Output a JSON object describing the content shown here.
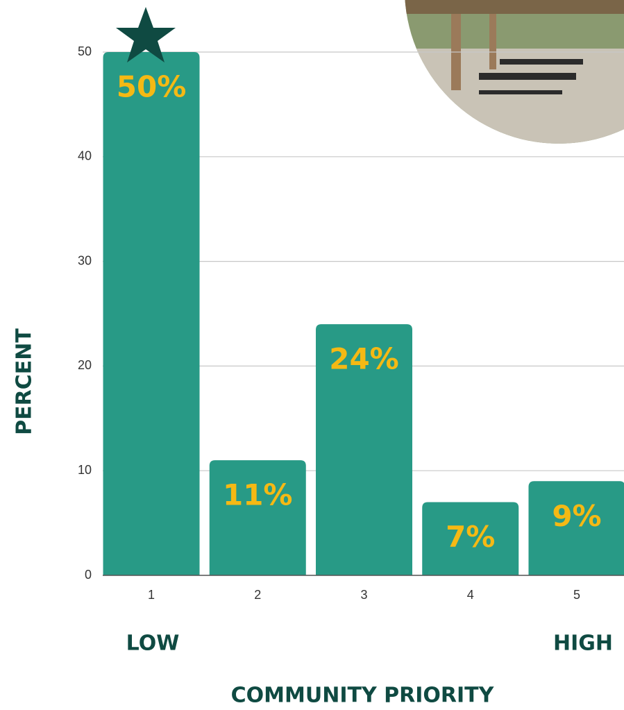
{
  "chart_data": {
    "type": "bar",
    "categories": [
      "1",
      "2",
      "3",
      "4",
      "5"
    ],
    "values": [
      50,
      11,
      24,
      7,
      9
    ],
    "value_labels": [
      "50%",
      "11%",
      "24%",
      "7%",
      "9%"
    ],
    "color": "#289a86",
    "label_color": "#f5b914",
    "ylim": [
      0,
      50
    ],
    "yticks": [
      0,
      10,
      20,
      30,
      40,
      50
    ],
    "grid": true,
    "y_label": "PERCENT",
    "x_label": "COMMUNITY  PRIORITY",
    "annotations": [
      "LOW",
      "HIGH"
    ]
  }
}
